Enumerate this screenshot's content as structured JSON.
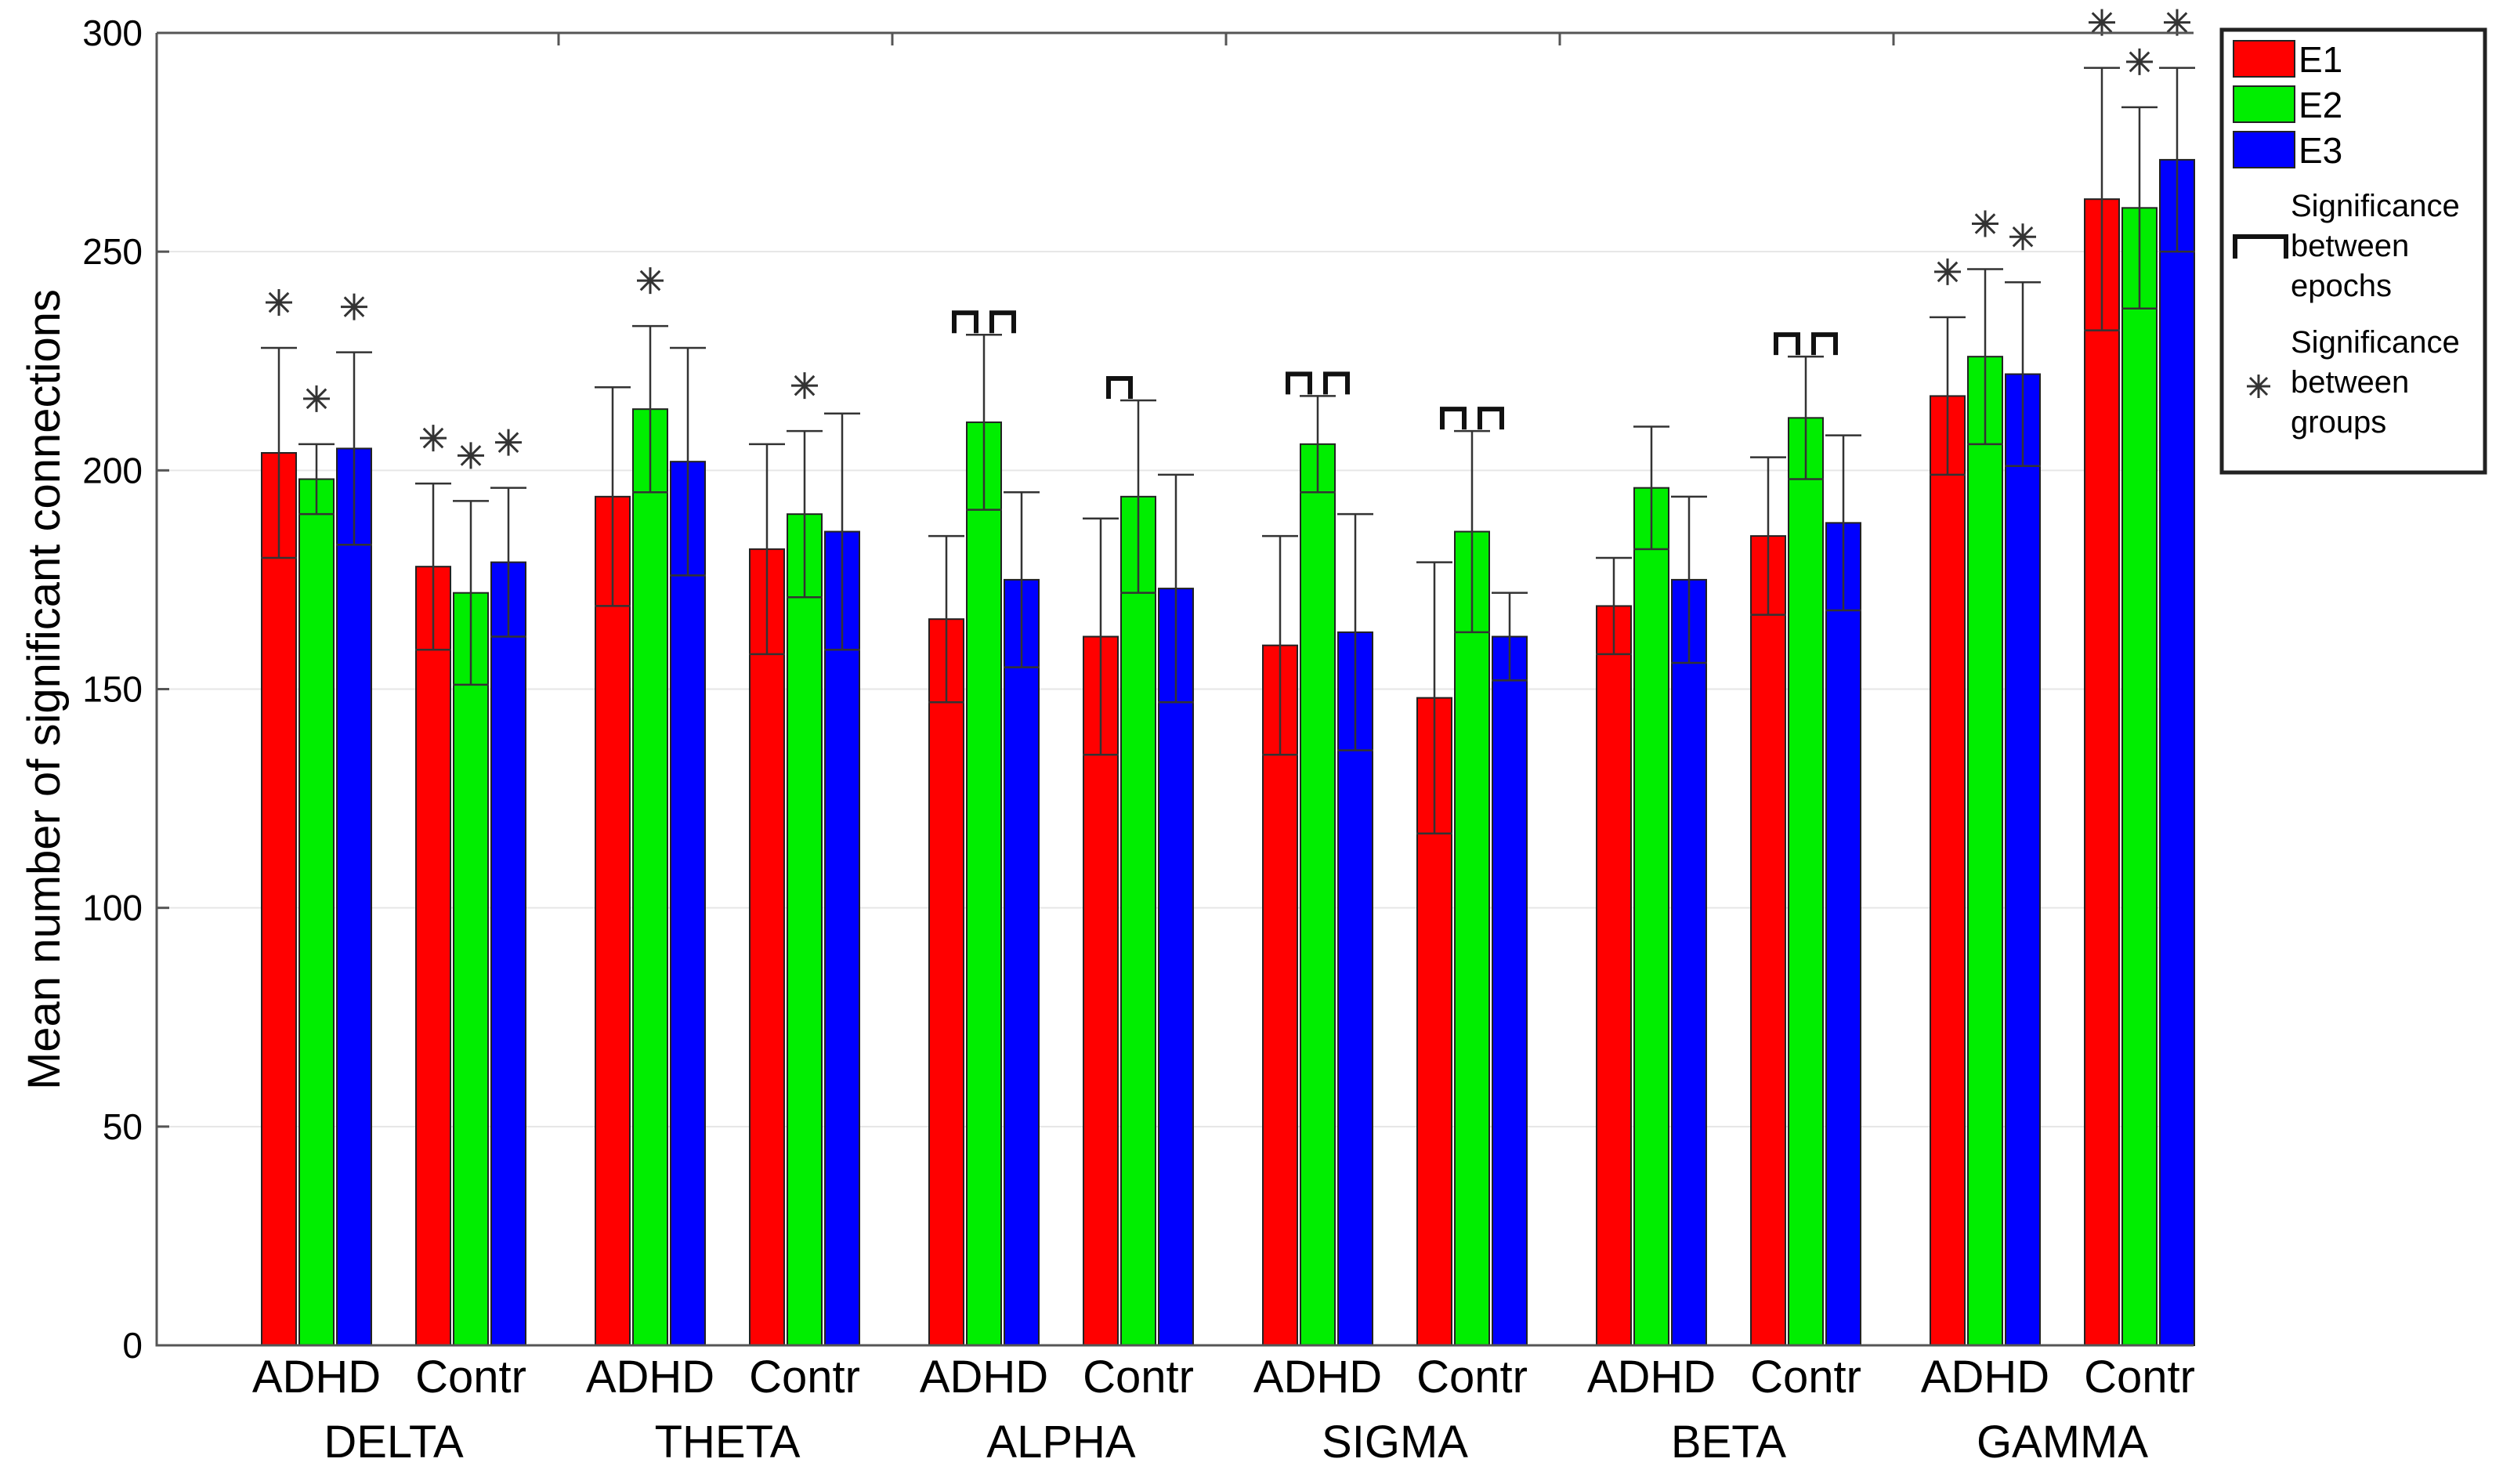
{
  "chart_data": {
    "type": "bar",
    "ylabel": "Mean number of significant connections",
    "xlabel": "",
    "ylim": [
      0,
      300
    ],
    "yticks": [
      0,
      50,
      100,
      150,
      200,
      250,
      300
    ],
    "grid": true,
    "legend_position": "top-right",
    "bands": [
      "DELTA",
      "THETA",
      "ALPHA",
      "SIGMA",
      "BETA",
      "GAMMA"
    ],
    "groups": [
      "ADHD",
      "Contr"
    ],
    "categories": [
      "ADHD",
      "Contr",
      "ADHD",
      "Contr",
      "ADHD",
      "Contr",
      "ADHD",
      "Contr",
      "ADHD",
      "Contr",
      "ADHD",
      "Contr"
    ],
    "series": [
      {
        "name": "E1",
        "color": "#ff0000",
        "values": [
          204,
          178,
          194,
          182,
          166,
          162,
          160,
          148,
          169,
          185,
          217,
          262
        ],
        "errors": [
          24,
          19,
          25,
          24,
          19,
          27,
          25,
          31,
          11,
          18,
          18,
          30
        ]
      },
      {
        "name": "E2",
        "color": "#00ee00",
        "values": [
          198,
          172,
          214,
          190,
          211,
          194,
          206,
          186,
          196,
          212,
          226,
          260
        ],
        "errors": [
          8,
          21,
          19,
          19,
          20,
          22,
          11,
          23,
          14,
          14,
          20,
          23
        ]
      },
      {
        "name": "E3",
        "color": "#0000ff",
        "values": [
          205,
          179,
          202,
          186,
          175,
          173,
          163,
          162,
          175,
          188,
          222,
          271
        ],
        "errors": [
          22,
          17,
          26,
          27,
          20,
          26,
          27,
          10,
          19,
          20,
          21,
          21
        ]
      }
    ],
    "group_significance_stars": [
      [
        true,
        true,
        true
      ],
      [
        true,
        true,
        true
      ],
      [
        false,
        true,
        false
      ],
      [
        false,
        true,
        false
      ],
      [
        false,
        false,
        false
      ],
      [
        false,
        false,
        false
      ],
      [
        false,
        false,
        false
      ],
      [
        false,
        false,
        false
      ],
      [
        false,
        false,
        false
      ],
      [
        false,
        false,
        false
      ],
      [
        true,
        true,
        true
      ],
      [
        true,
        true,
        true
      ]
    ],
    "epoch_significance_brackets": [
      [],
      [],
      [],
      [],
      [
        [
          0,
          1
        ],
        [
          1,
          2
        ]
      ],
      [
        [
          0,
          1
        ]
      ],
      [
        [
          0,
          1
        ],
        [
          1,
          2
        ]
      ],
      [
        [
          0,
          1
        ],
        [
          1,
          2
        ]
      ],
      [],
      [
        [
          0,
          1
        ],
        [
          1,
          2
        ]
      ],
      [],
      []
    ],
    "legend": {
      "entries": [
        "E1",
        "E2",
        "E3"
      ],
      "bracket_label": [
        "Significance",
        "between",
        "epochs"
      ],
      "star_label": [
        "Significance",
        "between",
        "groups"
      ]
    }
  }
}
